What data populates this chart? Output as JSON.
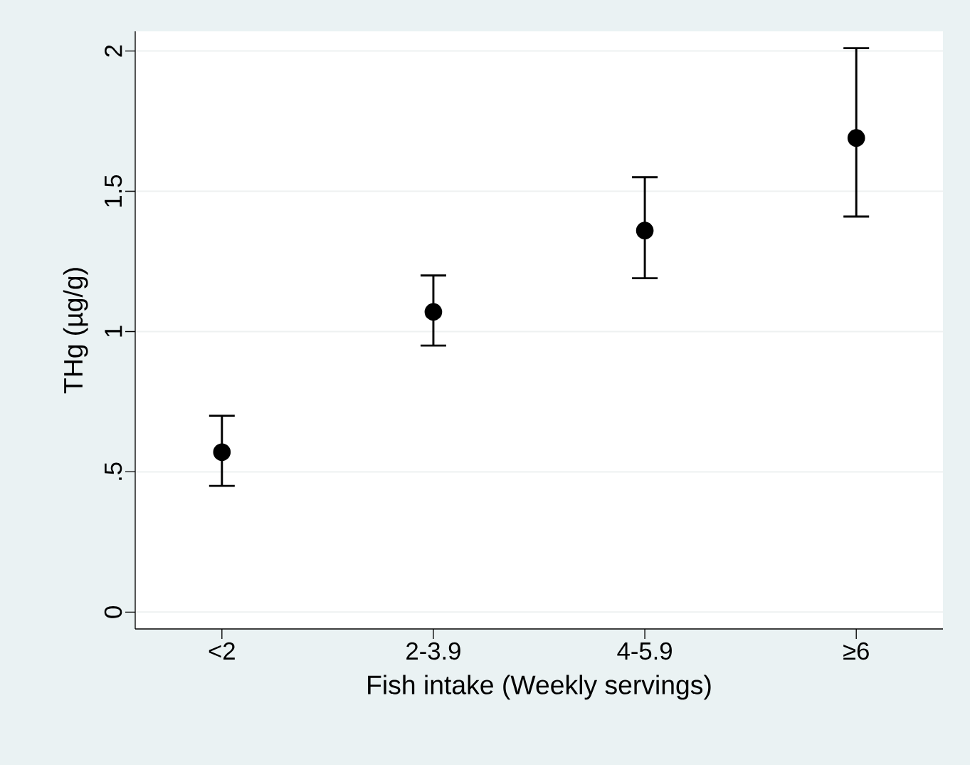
{
  "chart_data": {
    "type": "scatter",
    "xlabel": "Fish intake (Weekly servings)",
    "ylabel": "THg (µg/g)",
    "categories": [
      "<2",
      "2-3.9",
      "4-5.9",
      "≥6"
    ],
    "values": [
      0.57,
      1.07,
      1.36,
      1.69
    ],
    "errors": [
      [
        0.45,
        0.7
      ],
      [
        0.95,
        1.2
      ],
      [
        1.19,
        1.55
      ],
      [
        1.41,
        2.01
      ]
    ],
    "color": "#000000",
    "marker": "circle",
    "ylim": [
      -0.06,
      2.07
    ],
    "yticks": [
      0,
      {
        "value": 0.5,
        "label": ".5"
      },
      1,
      1.5,
      2
    ],
    "grid": "y"
  }
}
